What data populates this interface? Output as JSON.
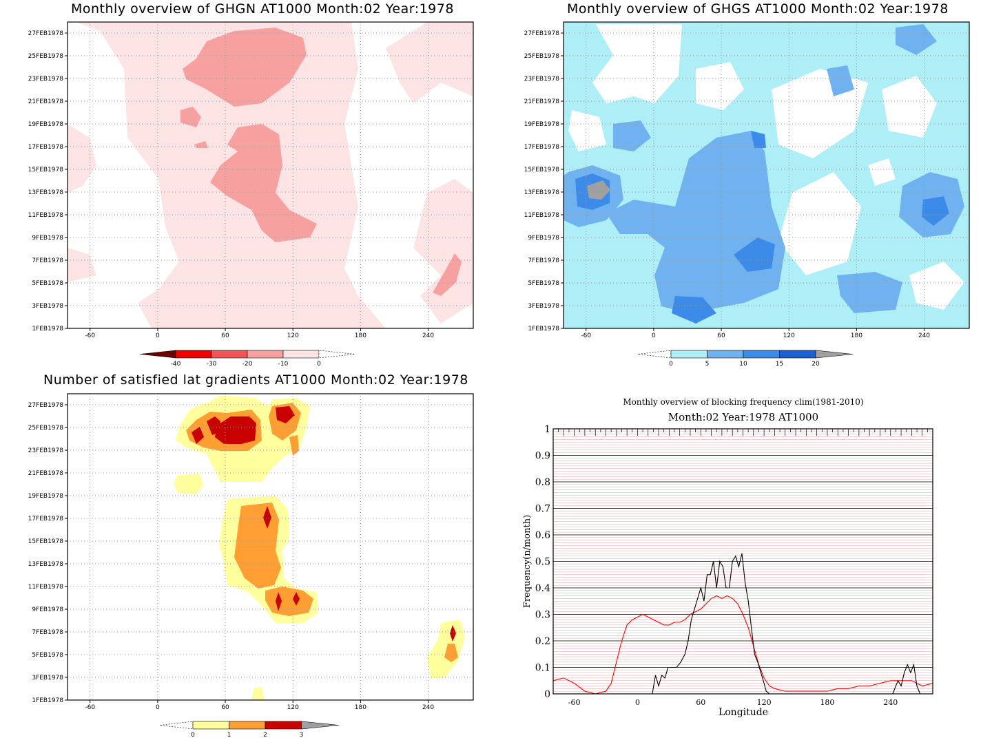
{
  "chart_data": [
    {
      "type": "heatmap",
      "title": "Monthly overview of GHGN AT1000 Month:02 Year:1978",
      "y_ticks": [
        "27FEB1978",
        "25FEB1978",
        "23FEB1978",
        "21FEB1978",
        "19FEB1978",
        "17FEB1978",
        "15FEB1978",
        "13FEB1978",
        "11FEB1978",
        "9FEB1978",
        "7FEB1978",
        "5FEB1978",
        "3FEB1978",
        "1FEB1978"
      ],
      "x_ticks": [
        "-60",
        "0",
        "60",
        "120",
        "180",
        "240"
      ],
      "xlim": [
        -80,
        280
      ],
      "colorbar": {
        "labels": [
          "-40",
          "-30",
          "-20",
          "-10",
          "0"
        ],
        "colors": [
          "#6b0000",
          "#ee0000",
          "#f25555",
          "#f7a0a0",
          "#fde4e4"
        ]
      },
      "regions": [
        {
          "level": "0 to -10",
          "color": "#fde4e4",
          "description": "broad band around 60-150"
        },
        {
          "level": "-10 to -20",
          "color": "#f7a0a0",
          "description": "patches near 70-140"
        }
      ]
    },
    {
      "type": "heatmap",
      "title": "Monthly overview of GHGS AT1000 Month:02 Year:1978",
      "y_ticks": [
        "27FEB1978",
        "25FEB1978",
        "23FEB1978",
        "21FEB1978",
        "19FEB1978",
        "17FEB1978",
        "15FEB1978",
        "13FEB1978",
        "11FEB1978",
        "9FEB1978",
        "7FEB1978",
        "5FEB1978",
        "3FEB1978",
        "1FEB1978"
      ],
      "x_ticks": [
        "-60",
        "0",
        "60",
        "120",
        "180",
        "240"
      ],
      "xlim": [
        -80,
        280
      ],
      "colorbar": {
        "labels": [
          "0",
          "5",
          "10",
          "15",
          "20"
        ],
        "colors": [
          "#aeeef6",
          "#6fb2ef",
          "#3d8be8",
          "#1d5fd0",
          "#a0a0a0"
        ]
      }
    },
    {
      "type": "heatmap",
      "title": "Number of satisfied lat gradients AT1000 Month:02 Year:1978",
      "y_ticks": [
        "27FEB1978",
        "25FEB1978",
        "23FEB1978",
        "21FEB1978",
        "19FEB1978",
        "17FEB1978",
        "15FEB1978",
        "13FEB1978",
        "11FEB1978",
        "9FEB1978",
        "7FEB1978",
        "5FEB1978",
        "3FEB1978",
        "1FEB1978"
      ],
      "x_ticks": [
        "-60",
        "0",
        "60",
        "120",
        "180",
        "240"
      ],
      "xlim": [
        -80,
        280
      ],
      "colorbar": {
        "labels": [
          "0",
          "1",
          "2",
          "3"
        ],
        "colors": [
          "#ffff9e",
          "#ff9e33",
          "#c80000",
          "#a0a0a0"
        ]
      }
    },
    {
      "type": "line",
      "title": "Monthly overview of blocking frequency clim(1981-2010)",
      "subtitle": "Month:02 Year:1978  AT1000",
      "xlabel": "Longitude",
      "ylabel": "Frequency(n/month)",
      "xlim": [
        -80,
        280
      ],
      "ylim": [
        0,
        1
      ],
      "x_ticks": [
        "-60",
        "0",
        "60",
        "120",
        "180",
        "240"
      ],
      "y_ticks": [
        "0",
        "0.1",
        "0.2",
        "0.3",
        "0.4",
        "0.5",
        "0.6",
        "0.7",
        "0.8",
        "0.9",
        "1"
      ],
      "series": [
        {
          "color": "#ff0000",
          "points": [
            [
              -80,
              0.05
            ],
            [
              -70,
              0.06
            ],
            [
              -60,
              0.04
            ],
            [
              -50,
              0.01
            ],
            [
              -40,
              0.0
            ],
            [
              -30,
              0.01
            ],
            [
              -25,
              0.04
            ],
            [
              -20,
              0.12
            ],
            [
              -15,
              0.2
            ],
            [
              -10,
              0.26
            ],
            [
              -5,
              0.28
            ],
            [
              0,
              0.29
            ],
            [
              5,
              0.3
            ],
            [
              10,
              0.29
            ],
            [
              15,
              0.28
            ],
            [
              20,
              0.27
            ],
            [
              25,
              0.26
            ],
            [
              30,
              0.26
            ],
            [
              35,
              0.27
            ],
            [
              40,
              0.27
            ],
            [
              45,
              0.28
            ],
            [
              50,
              0.3
            ],
            [
              55,
              0.31
            ],
            [
              60,
              0.32
            ],
            [
              65,
              0.34
            ],
            [
              70,
              0.36
            ],
            [
              75,
              0.37
            ],
            [
              80,
              0.36
            ],
            [
              85,
              0.37
            ],
            [
              90,
              0.36
            ],
            [
              95,
              0.34
            ],
            [
              100,
              0.3
            ],
            [
              105,
              0.25
            ],
            [
              110,
              0.18
            ],
            [
              115,
              0.11
            ],
            [
              120,
              0.06
            ],
            [
              125,
              0.03
            ],
            [
              130,
              0.02
            ],
            [
              140,
              0.01
            ],
            [
              150,
              0.01
            ],
            [
              160,
              0.01
            ],
            [
              170,
              0.01
            ],
            [
              180,
              0.01
            ],
            [
              190,
              0.02
            ],
            [
              200,
              0.02
            ],
            [
              210,
              0.03
            ],
            [
              220,
              0.03
            ],
            [
              230,
              0.04
            ],
            [
              240,
              0.05
            ],
            [
              250,
              0.05
            ],
            [
              260,
              0.05
            ],
            [
              270,
              0.03
            ],
            [
              280,
              0.04
            ]
          ]
        },
        {
          "color": "#000000",
          "points": [
            [
              14,
              0.0
            ],
            [
              17,
              0.07
            ],
            [
              20,
              0.03
            ],
            [
              23,
              0.07
            ],
            [
              26,
              0.06
            ],
            [
              29,
              0.1
            ],
            [
              33,
              0.1
            ],
            [
              37,
              0.1
            ],
            [
              41,
              0.12
            ],
            [
              45,
              0.15
            ],
            [
              48,
              0.2
            ],
            [
              51,
              0.28
            ],
            [
              54,
              0.32
            ],
            [
              57,
              0.36
            ],
            [
              60,
              0.4
            ],
            [
              63,
              0.35
            ],
            [
              66,
              0.45
            ],
            [
              69,
              0.45
            ],
            [
              72,
              0.5
            ],
            [
              75,
              0.4
            ],
            [
              78,
              0.5
            ],
            [
              81,
              0.48
            ],
            [
              84,
              0.4
            ],
            [
              87,
              0.4
            ],
            [
              90,
              0.5
            ],
            [
              93,
              0.52
            ],
            [
              96,
              0.48
            ],
            [
              99,
              0.53
            ],
            [
              102,
              0.42
            ],
            [
              105,
              0.35
            ],
            [
              108,
              0.25
            ],
            [
              111,
              0.15
            ],
            [
              114,
              0.12
            ],
            [
              117,
              0.08
            ],
            [
              120,
              0.04
            ],
            [
              122,
              0.01
            ],
            [
              125,
              0.0
            ]
          ]
        },
        {
          "color": "#000000",
          "points": [
            [
              242,
              0.0
            ],
            [
              247,
              0.05
            ],
            [
              250,
              0.03
            ],
            [
              253,
              0.08
            ],
            [
              256,
              0.11
            ],
            [
              259,
              0.08
            ],
            [
              262,
              0.11
            ],
            [
              265,
              0.03
            ],
            [
              268,
              0.0
            ]
          ]
        }
      ]
    }
  ]
}
